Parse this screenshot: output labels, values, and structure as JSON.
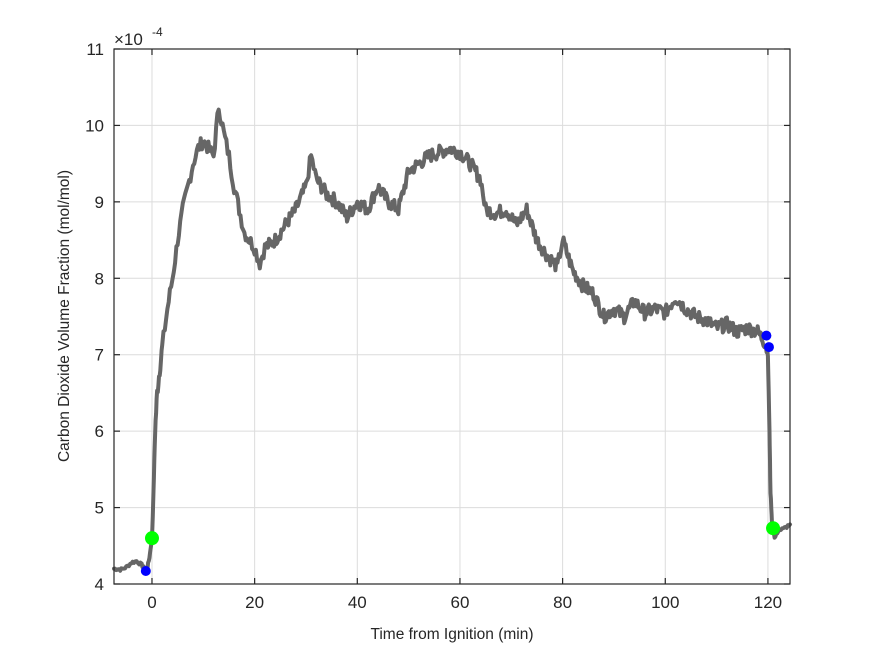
{
  "chart_data": {
    "type": "line",
    "title": "",
    "xlabel": "Time from Ignition (min)",
    "ylabel": "Carbon Dioxide Volume Fraction (mol/mol)",
    "y_multiplier": "×10",
    "y_multiplier_exponent": "-4",
    "xlim": [
      -7.4,
      124.3
    ],
    "ylim": [
      4,
      11
    ],
    "xticks": [
      0,
      20,
      40,
      60,
      80,
      100,
      120
    ],
    "yticks": [
      4,
      5,
      6,
      7,
      8,
      9,
      10,
      11
    ],
    "grid": true,
    "legend": null,
    "series": [
      {
        "name": "CO2 volume fraction",
        "color": "#666666",
        "units_y": "x1e-4 mol/mol",
        "x": [
          -7.4,
          -6,
          -5,
          -4,
          -3,
          -2,
          -1.5,
          -1,
          -0.5,
          0,
          0.3,
          0.6,
          1,
          1.5,
          2,
          3,
          4,
          5,
          6,
          7,
          8,
          9,
          10,
          11,
          12,
          13,
          14,
          15,
          16,
          17,
          18,
          19,
          20,
          21,
          22,
          24,
          26,
          28,
          30,
          31,
          32,
          34,
          36,
          38,
          40,
          42,
          44,
          46,
          48,
          50,
          52,
          54,
          56,
          58,
          60,
          62,
          64,
          65,
          67,
          69,
          71,
          73,
          75,
          77,
          79,
          80,
          82,
          84,
          86,
          88,
          90,
          92,
          94,
          96,
          98,
          100,
          102,
          104,
          106,
          108,
          110,
          112,
          114,
          116,
          118,
          119.5,
          120,
          120.3,
          120.5,
          120.8,
          121.3,
          122,
          123,
          124.3
        ],
        "values": [
          4.2,
          4.19,
          4.22,
          4.28,
          4.3,
          4.25,
          4.2,
          4.17,
          4.35,
          4.6,
          5.2,
          6.0,
          6.5,
          6.8,
          7.1,
          7.6,
          8.0,
          8.5,
          8.9,
          9.2,
          9.5,
          9.7,
          9.8,
          9.7,
          9.6,
          10.25,
          9.9,
          9.6,
          9.2,
          8.9,
          8.6,
          8.5,
          8.4,
          8.2,
          8.4,
          8.5,
          8.7,
          8.9,
          9.2,
          9.6,
          9.3,
          9.1,
          9.0,
          8.8,
          9.0,
          8.9,
          9.2,
          9.0,
          8.9,
          9.4,
          9.5,
          9.6,
          9.65,
          9.7,
          9.65,
          9.5,
          9.3,
          8.9,
          8.85,
          8.9,
          8.7,
          8.9,
          8.5,
          8.3,
          8.15,
          8.5,
          8.1,
          7.9,
          7.8,
          7.5,
          7.6,
          7.5,
          7.7,
          7.55,
          7.6,
          7.55,
          7.75,
          7.6,
          7.5,
          7.45,
          7.35,
          7.4,
          7.3,
          7.35,
          7.3,
          7.15,
          7.0,
          6.0,
          5.2,
          4.8,
          4.6,
          4.7,
          4.72,
          4.78
        ]
      }
    ],
    "markers": [
      {
        "name": "blue-start",
        "color": "#0000ff",
        "x": -1.2,
        "y": 4.17,
        "size": 5
      },
      {
        "name": "green-ignition",
        "color": "#00ff00",
        "x": 0,
        "y": 4.6,
        "size": 7
      },
      {
        "name": "blue-end-1",
        "color": "#0000ff",
        "x": 119.7,
        "y": 7.25,
        "size": 5
      },
      {
        "name": "blue-end-2",
        "color": "#0000ff",
        "x": 120.2,
        "y": 7.1,
        "size": 5
      },
      {
        "name": "green-end",
        "color": "#00ff00",
        "x": 121,
        "y": 4.73,
        "size": 7
      }
    ]
  },
  "labels": {
    "xlabel": "Time from Ignition (min)",
    "ylabel": "Carbon Dioxide Volume Fraction (mol/mol)",
    "exp_base": "×10",
    "exp_power": "-4",
    "xticks": [
      "0",
      "20",
      "40",
      "60",
      "80",
      "100",
      "120"
    ],
    "yticks": [
      "4",
      "5",
      "6",
      "7",
      "8",
      "9",
      "10",
      "11"
    ]
  }
}
